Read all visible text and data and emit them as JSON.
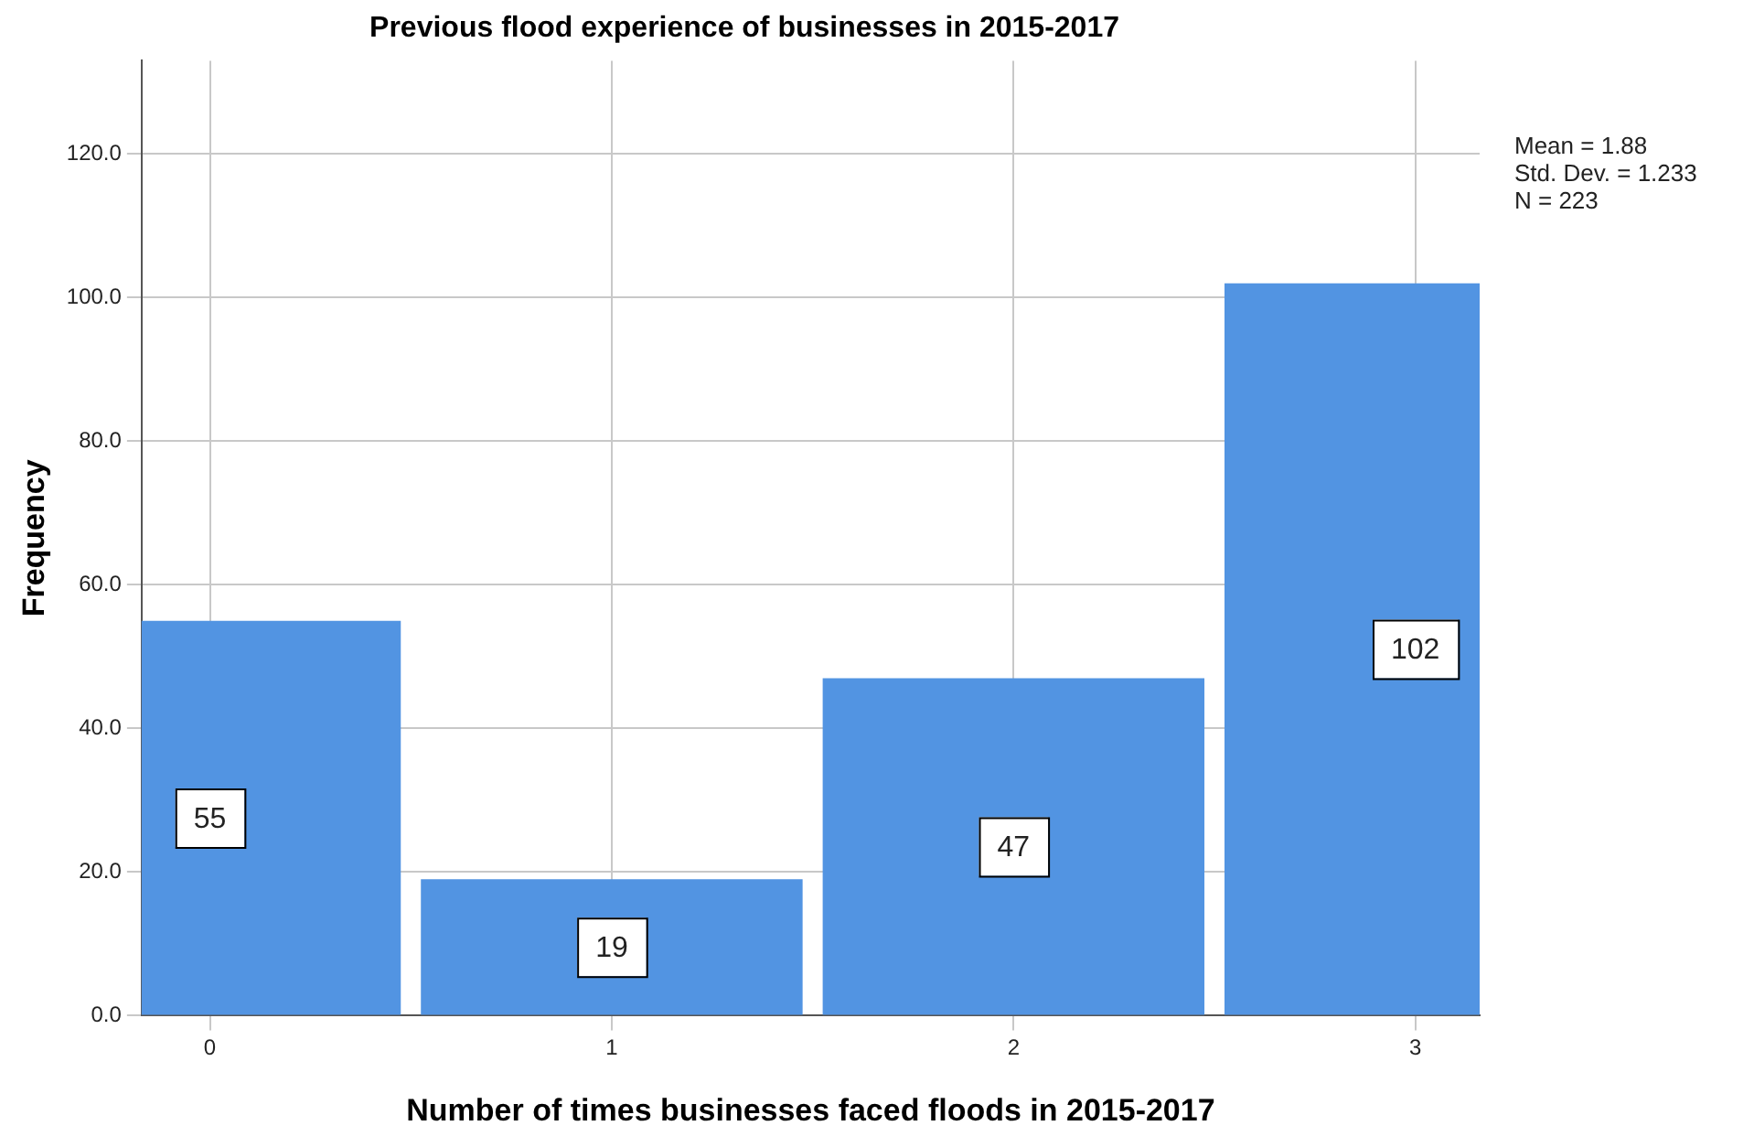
{
  "chart_data": {
    "type": "histogram",
    "title": "Previous flood experience of businesses in 2015-2017",
    "xlabel": "Number of times businesses faced floods in 2015-2017",
    "ylabel": "Frequency",
    "bins": [
      -0.5,
      0.5,
      1.5,
      2.5,
      3.5
    ],
    "values": [
      55,
      19,
      47,
      102
    ],
    "color": "#5294e2",
    "xlim": [
      -0.17,
      3.16
    ],
    "xticks": [
      0,
      1,
      2,
      3
    ],
    "ylim": [
      0,
      133
    ],
    "yticks": [
      {
        "value": 0,
        "label": "0.0"
      },
      {
        "value": 20,
        "label": "20.0"
      },
      {
        "value": 40,
        "label": "40.0"
      },
      {
        "value": 60,
        "label": "60.0"
      },
      {
        "value": 80,
        "label": "80.0"
      },
      {
        "value": 100,
        "label": "100.0"
      },
      {
        "value": 120,
        "label": "120.0"
      }
    ],
    "grid": true,
    "data_labels": true,
    "annotations": [
      "Mean = 1.88",
      "Std. Dev. = 1.233",
      "N = 223"
    ]
  }
}
